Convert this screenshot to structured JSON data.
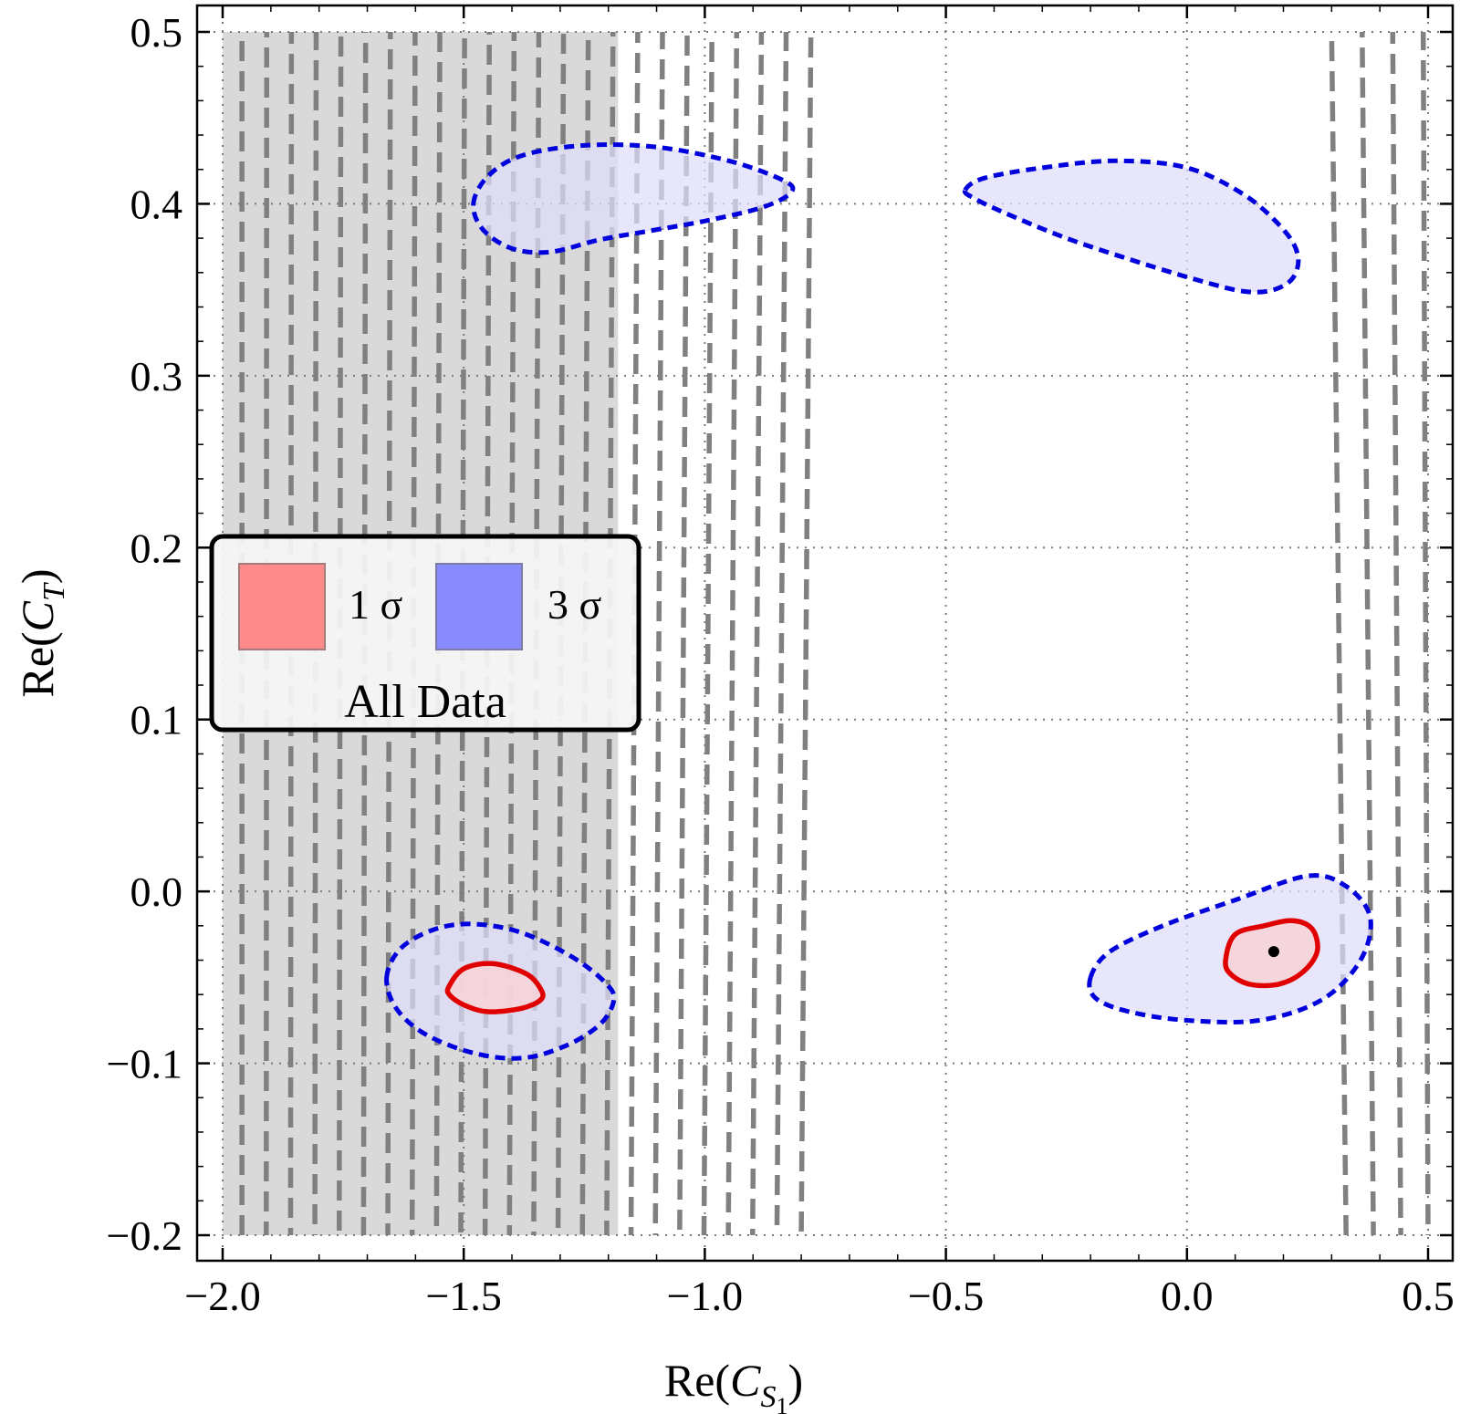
{
  "chart_data": {
    "type": "contour",
    "xlabel": "Re(C_S1)",
    "ylabel": "Re(C_T)",
    "xlim": [
      -2.0,
      0.5
    ],
    "ylim": [
      -0.2,
      0.5
    ],
    "xticks": [
      -2.0,
      -1.5,
      -1.0,
      -0.5,
      0.0,
      0.5
    ],
    "xtick_labels": [
      "−2.0",
      "−1.5",
      "−1.0",
      "−0.5",
      "0.0",
      "0.5"
    ],
    "yticks": [
      -0.2,
      -0.1,
      0.0,
      0.1,
      0.2,
      0.3,
      0.4,
      0.5
    ],
    "ytick_labels": [
      "−0.2",
      "−0.1",
      "0.0",
      "0.1",
      "0.2",
      "0.3",
      "0.4",
      "0.5"
    ],
    "grid": true,
    "legend": {
      "placement": "middle-left",
      "title": "All Data",
      "entries": [
        {
          "label": "1 σ",
          "color": "#ff8a8a"
        },
        {
          "label": "3 σ",
          "color": "#8a8aff"
        }
      ]
    },
    "colors": {
      "sigma1_fill": "#f6d4d8",
      "sigma1_line": "#e00000",
      "sigma3_fill": "#dedcf9",
      "sigma3_line": "#0000dd",
      "excluded_band": "#d9d9d9",
      "dashed_constraints": "#808080",
      "best_fit": "#000000"
    },
    "excluded_region": {
      "x": [
        -2.0,
        -1.18
      ],
      "y": [
        -0.2,
        0.5
      ]
    },
    "best_fit_point": {
      "x": 0.18,
      "y": -0.035
    },
    "regions": [
      {
        "name": "3sigma-upper-left",
        "level": "3 sigma",
        "points": [
          [
            -1.48,
            0.4
          ],
          [
            -1.45,
            0.416
          ],
          [
            -1.38,
            0.428
          ],
          [
            -1.25,
            0.434
          ],
          [
            -1.1,
            0.433
          ],
          [
            -0.95,
            0.425
          ],
          [
            -0.84,
            0.414
          ],
          [
            -0.82,
            0.407
          ],
          [
            -0.88,
            0.398
          ],
          [
            -1.0,
            0.39
          ],
          [
            -1.12,
            0.384
          ],
          [
            -1.22,
            0.379
          ],
          [
            -1.32,
            0.372
          ],
          [
            -1.4,
            0.374
          ],
          [
            -1.46,
            0.385
          ]
        ]
      },
      {
        "name": "3sigma-upper-right",
        "level": "3 sigma",
        "points": [
          [
            -0.46,
            0.408
          ],
          [
            -0.42,
            0.415
          ],
          [
            -0.3,
            0.421
          ],
          [
            -0.15,
            0.425
          ],
          [
            0.0,
            0.421
          ],
          [
            0.12,
            0.405
          ],
          [
            0.2,
            0.385
          ],
          [
            0.23,
            0.37
          ],
          [
            0.22,
            0.357
          ],
          [
            0.18,
            0.35
          ],
          [
            0.12,
            0.349
          ],
          [
            0.03,
            0.355
          ],
          [
            -0.1,
            0.366
          ],
          [
            -0.25,
            0.38
          ],
          [
            -0.38,
            0.395
          ],
          [
            -0.44,
            0.403
          ]
        ]
      },
      {
        "name": "3sigma-lower-left",
        "level": "3 sigma",
        "points": [
          [
            -1.66,
            -0.05
          ],
          [
            -1.63,
            -0.033
          ],
          [
            -1.56,
            -0.022
          ],
          [
            -1.48,
            -0.019
          ],
          [
            -1.38,
            -0.024
          ],
          [
            -1.27,
            -0.039
          ],
          [
            -1.2,
            -0.055
          ],
          [
            -1.19,
            -0.065
          ],
          [
            -1.22,
            -0.078
          ],
          [
            -1.29,
            -0.09
          ],
          [
            -1.38,
            -0.097
          ],
          [
            -1.48,
            -0.094
          ],
          [
            -1.58,
            -0.083
          ],
          [
            -1.64,
            -0.068
          ]
        ]
      },
      {
        "name": "3sigma-lower-right",
        "level": "3 sigma",
        "points": [
          [
            -0.2,
            -0.05
          ],
          [
            -0.16,
            -0.035
          ],
          [
            -0.05,
            -0.02
          ],
          [
            0.1,
            -0.005
          ],
          [
            0.25,
            0.009
          ],
          [
            0.33,
            0.003
          ],
          [
            0.38,
            -0.015
          ],
          [
            0.36,
            -0.04
          ],
          [
            0.28,
            -0.063
          ],
          [
            0.15,
            -0.075
          ],
          [
            0.0,
            -0.075
          ],
          [
            -0.12,
            -0.07
          ],
          [
            -0.19,
            -0.062
          ]
        ]
      },
      {
        "name": "1sigma-lower-left",
        "level": "1 sigma",
        "points": [
          [
            -1.53,
            -0.055
          ],
          [
            -1.5,
            -0.045
          ],
          [
            -1.44,
            -0.042
          ],
          [
            -1.37,
            -0.048
          ],
          [
            -1.34,
            -0.057
          ],
          [
            -1.34,
            -0.063
          ],
          [
            -1.38,
            -0.068
          ],
          [
            -1.45,
            -0.07
          ],
          [
            -1.5,
            -0.066
          ],
          [
            -1.53,
            -0.06
          ]
        ]
      },
      {
        "name": "1sigma-lower-right",
        "level": "1 sigma",
        "points": [
          [
            0.08,
            -0.04
          ],
          [
            0.1,
            -0.025
          ],
          [
            0.16,
            -0.02
          ],
          [
            0.22,
            -0.017
          ],
          [
            0.26,
            -0.022
          ],
          [
            0.27,
            -0.035
          ],
          [
            0.24,
            -0.047
          ],
          [
            0.19,
            -0.054
          ],
          [
            0.13,
            -0.054
          ],
          [
            0.09,
            -0.048
          ]
        ]
      }
    ],
    "dashed_bands": [
      {
        "name": "left-band",
        "x_bottom": [
          -1.96,
          -0.8
        ],
        "x_top": [
          -1.96,
          -0.78
        ],
        "n_lines": 24
      },
      {
        "name": "right-band",
        "x_bottom": [
          0.33,
          0.5
        ],
        "x_top": [
          0.3,
          0.49
        ],
        "n_lines": 4
      }
    ]
  }
}
